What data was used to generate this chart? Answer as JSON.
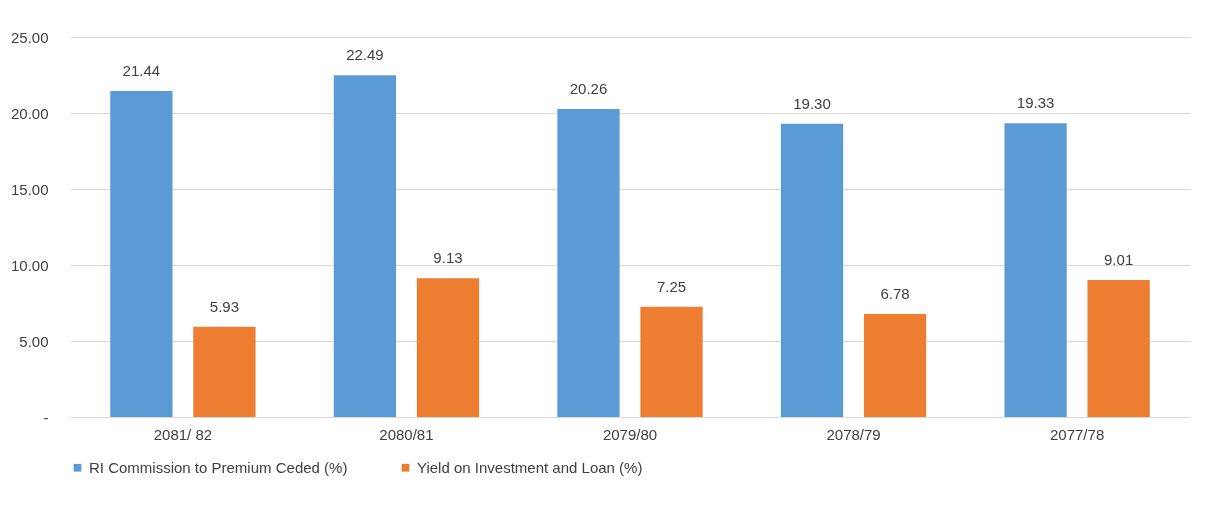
{
  "chart_data": {
    "type": "bar",
    "categories": [
      "2081/ 82",
      "2080/81",
      "2079/80",
      "2078/79",
      "2077/78"
    ],
    "series": [
      {
        "name": "RI Commission to Premium Ceded (%)",
        "color": "#5b9bd5",
        "values": [
          21.44,
          22.49,
          20.26,
          19.3,
          19.33
        ],
        "value_labels": [
          "21.44",
          "22.49",
          "20.26",
          "19.30",
          "19.33"
        ]
      },
      {
        "name": "Yield on Investment and Loan (%)",
        "color": "#ed7d31",
        "values": [
          5.93,
          9.13,
          7.25,
          6.78,
          9.01
        ],
        "value_labels": [
          "5.93",
          "9.13",
          "7.25",
          "6.78",
          "9.01"
        ]
      }
    ],
    "ylim": [
      0,
      25
    ],
    "yticks": [
      {
        "value": 0,
        "label": "-"
      },
      {
        "value": 5,
        "label": "5.00"
      },
      {
        "value": 10,
        "label": "10.00"
      },
      {
        "value": 15,
        "label": "15.00"
      },
      {
        "value": 20,
        "label": "20.00"
      },
      {
        "value": 25,
        "label": "25.00"
      }
    ],
    "grid": "y",
    "legend": "bottom"
  }
}
